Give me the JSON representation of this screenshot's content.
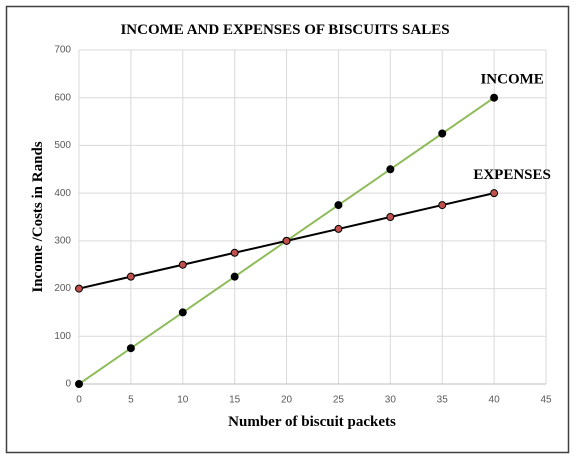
{
  "chart_data": {
    "type": "line",
    "title": "INCOME AND EXPENSES OF BISCUITS SALES",
    "x_label": "Number of biscuit packets",
    "y_label": "Income /Costs in Rands",
    "x": [
      0,
      5,
      10,
      15,
      20,
      25,
      30,
      35,
      40
    ],
    "series": [
      {
        "name": "INCOME",
        "color": "#8fbc5a",
        "marker_color": "#000000",
        "values": [
          0,
          75,
          150,
          225,
          300,
          375,
          450,
          525,
          600
        ]
      },
      {
        "name": "EXPENSES",
        "color": "#000000",
        "marker_color": "#c0504d",
        "values": [
          200,
          225,
          250,
          275,
          300,
          325,
          350,
          375,
          400
        ]
      }
    ],
    "xlim": [
      0,
      45
    ],
    "xticks": [
      0,
      5,
      10,
      15,
      20,
      25,
      30,
      35,
      40,
      45
    ],
    "ylim": [
      0,
      700
    ],
    "yticks": [
      0,
      100,
      200,
      300,
      400,
      500,
      600,
      700
    ],
    "grid": true
  }
}
